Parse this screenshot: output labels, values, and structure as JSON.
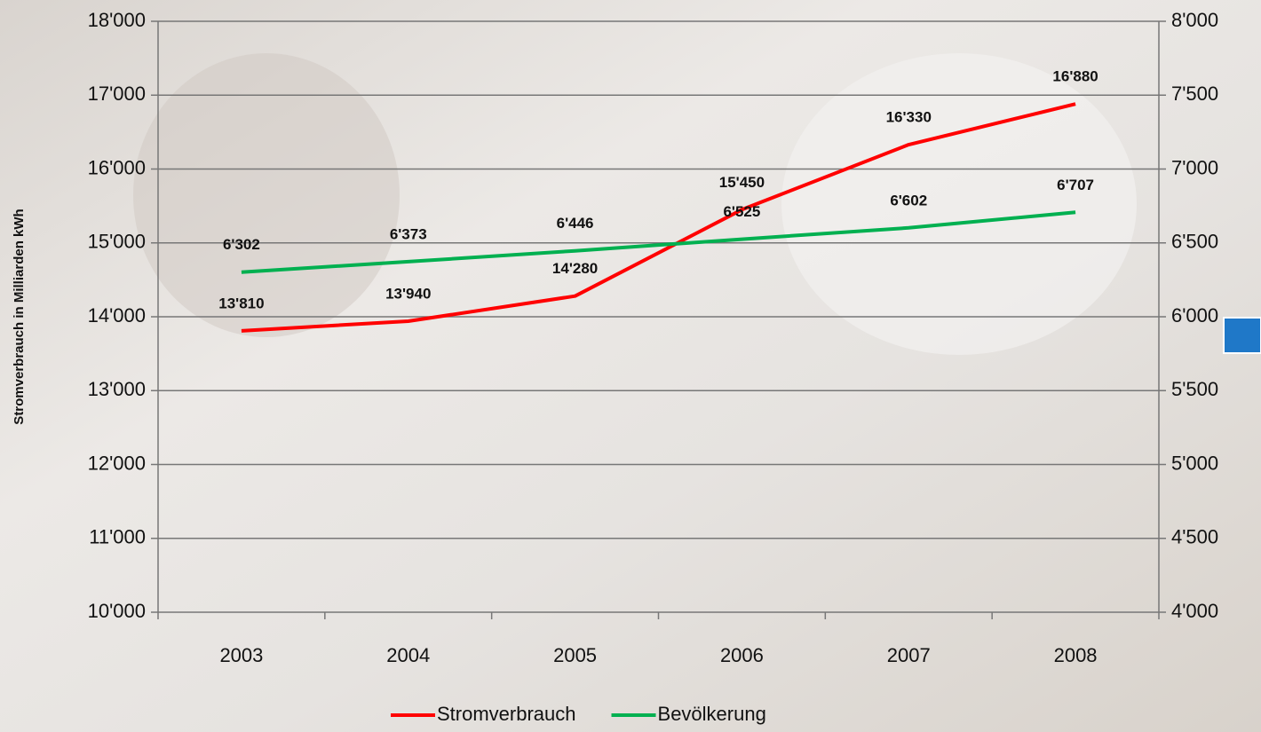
{
  "chart_data": {
    "type": "line",
    "y_label": "Stromverbrauch in Milliarden kWh",
    "categories": [
      "2003",
      "2004",
      "2005",
      "2006",
      "2007",
      "2008"
    ],
    "series": [
      {
        "name": "Stromverbrauch",
        "color": "#ff0000",
        "values": [
          13810,
          13940,
          14280,
          15450,
          16330,
          16880
        ],
        "value_labels": [
          "13'810",
          "13'940",
          "14'280",
          "15'450",
          "16'330",
          "16'880"
        ]
      },
      {
        "name": "Bevölkerung",
        "color": "#00b050",
        "axis": "y2",
        "values": [
          6302,
          6373,
          6446,
          6525,
          6602,
          6707
        ],
        "value_labels": [
          "6'302",
          "6'373",
          "6'446",
          "6'525",
          "6'602",
          "6'707"
        ]
      }
    ],
    "ylim": [
      10000,
      18000
    ],
    "yticks": [
      {
        "value": 10000,
        "label": "10'000"
      },
      {
        "value": 11000,
        "label": "11'000"
      },
      {
        "value": 12000,
        "label": "12'000"
      },
      {
        "value": 13000,
        "label": "13'000"
      },
      {
        "value": 14000,
        "label": "14'000"
      },
      {
        "value": 15000,
        "label": "15'000"
      },
      {
        "value": 16000,
        "label": "16'000"
      },
      {
        "value": 17000,
        "label": "17'000"
      },
      {
        "value": 18000,
        "label": "18'000"
      }
    ],
    "y2lim": [
      4000,
      8000
    ],
    "y2ticks": [
      {
        "value": 4000,
        "label": "4'000"
      },
      {
        "value": 4500,
        "label": "4'500"
      },
      {
        "value": 5000,
        "label": "5'000"
      },
      {
        "value": 5500,
        "label": "5'500"
      },
      {
        "value": 6000,
        "label": "6'000"
      },
      {
        "value": 6500,
        "label": "6'500"
      },
      {
        "value": 7000,
        "label": "7'000"
      },
      {
        "value": 7500,
        "label": "7'500"
      },
      {
        "value": 8000,
        "label": "8'000"
      }
    ],
    "grid": true,
    "legend": "bottom"
  }
}
